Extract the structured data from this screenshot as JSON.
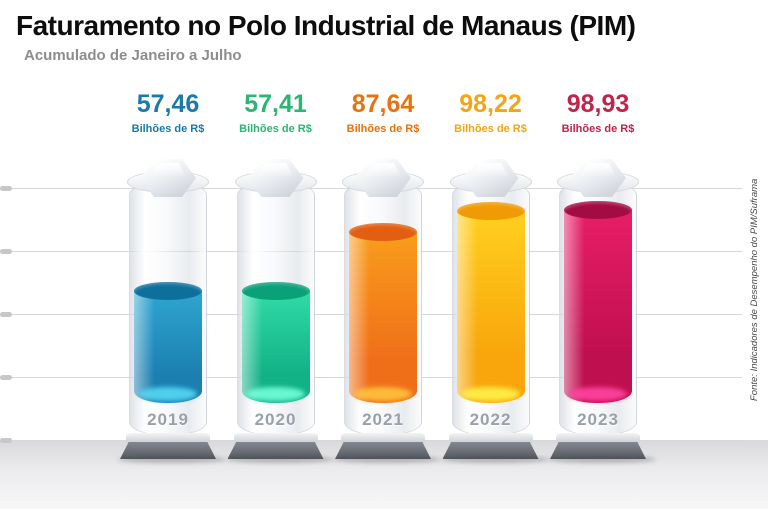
{
  "header": {
    "title": "Faturamento no Polo Industrial de Manaus (PIM)",
    "subtitle": "Acumulado de Janeiro a Julho"
  },
  "source_note": "Fonte: Indicadores de Desempenho do PIM/Suframa",
  "chart_data": {
    "type": "bar",
    "title": "Faturamento no Polo Industrial de Manaus (PIM)",
    "subtitle": "Acumulado de Janeiro a Julho",
    "unit": "Bilhões de R$",
    "categories": [
      "2019",
      "2020",
      "2021",
      "2022",
      "2023"
    ],
    "values": [
      57.46,
      57.41,
      87.64,
      98.22,
      98.93
    ],
    "ylim": [
      0,
      110
    ],
    "grid": true,
    "legend": "none",
    "columns": [
      {
        "year": "2019",
        "value": 57.46,
        "value_label": "57,46",
        "unit": "Bilhões de R$",
        "text_color": "#1a7aa9",
        "liquid_top": "#2fa6cf",
        "liquid_bottom": "#1b7fb0",
        "surface_color": "#0d6f9c",
        "glow_color": "#55d8f2"
      },
      {
        "year": "2020",
        "value": 57.41,
        "value_label": "57,41",
        "unit": "Bilhões de R$",
        "text_color": "#2bb673",
        "liquid_top": "#31dba6",
        "liquid_bottom": "#12b186",
        "surface_color": "#0aa179",
        "glow_color": "#72ffd9"
      },
      {
        "year": "2021",
        "value": 87.64,
        "value_label": "87,64",
        "unit": "Bilhões de R$",
        "text_color": "#e8720d",
        "liquid_top": "#f99d1c",
        "liquid_bottom": "#ef6f19",
        "surface_color": "#e25e11",
        "glow_color": "#ffc33e"
      },
      {
        "year": "2022",
        "value": 98.22,
        "value_label": "98,22",
        "unit": "Bilhões de R$",
        "text_color": "#f5a413",
        "liquid_top": "#ffd01f",
        "liquid_bottom": "#f8a60b",
        "surface_color": "#f09a06",
        "glow_color": "#fff14a"
      },
      {
        "year": "2023",
        "value": 98.93,
        "value_label": "98,93",
        "unit": "Bilhões de R$",
        "text_color": "#c02449",
        "liquid_top": "#e81e67",
        "liquid_bottom": "#c00f4e",
        "surface_color": "#a30c42",
        "glow_color": "#ff44a1"
      }
    ]
  }
}
